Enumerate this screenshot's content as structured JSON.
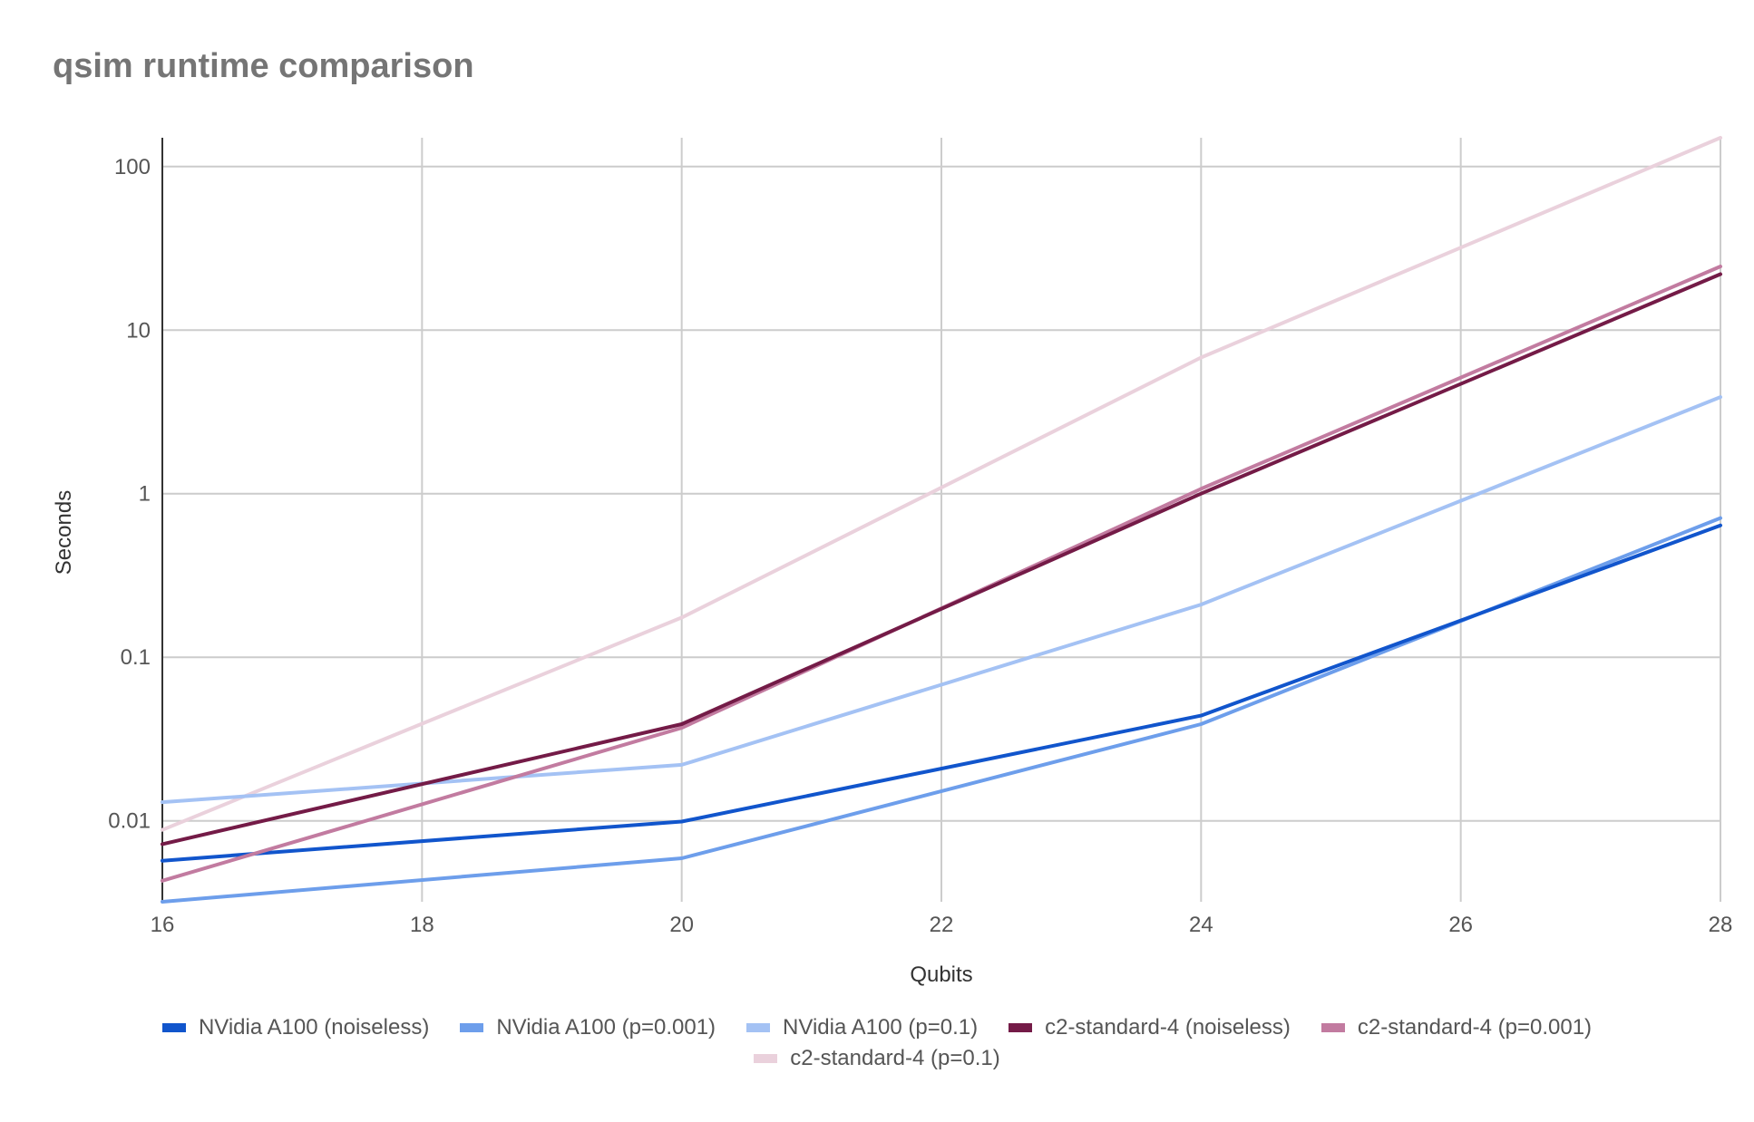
{
  "chart_data": {
    "type": "line",
    "title": "qsim runtime comparison",
    "xlabel": "Qubits",
    "ylabel": "Seconds",
    "x_ticks": [
      16,
      18,
      20,
      22,
      24,
      26,
      28
    ],
    "y_scale": "log",
    "y_ticks": [
      0.01,
      0.1,
      1,
      10,
      100
    ],
    "y_tick_labels": [
      "0.01",
      "0.1",
      "1",
      "10",
      "100"
    ],
    "xlim": [
      16,
      28
    ],
    "ylim": [
      0.0032,
      150
    ],
    "grid": true,
    "legend_position": "bottom",
    "x": [
      16,
      20,
      24,
      28
    ],
    "series": [
      {
        "name": "NVidia A100 (noiseless)",
        "color": "#1155cc",
        "values": [
          0.0057,
          0.0099,
          0.044,
          0.64
        ]
      },
      {
        "name": "NVidia A100 (p=0.001)",
        "color": "#6d9eeb",
        "values": [
          0.0032,
          0.0059,
          0.039,
          0.71
        ]
      },
      {
        "name": "NVidia A100 (p=0.1)",
        "color": "#a4c2f4",
        "values": [
          0.013,
          0.022,
          0.21,
          3.9
        ]
      },
      {
        "name": "c2-standard-4 (noiseless)",
        "color": "#741b47",
        "values": [
          0.0072,
          0.039,
          1.0,
          22
        ]
      },
      {
        "name": "c2-standard-4 (p=0.001)",
        "color": "#c27ba0",
        "values": [
          0.0043,
          0.037,
          1.07,
          24.5
        ]
      },
      {
        "name": "c2-standard-4 (p=0.1)",
        "color": "#ead1dc",
        "values": [
          0.0088,
          0.175,
          6.8,
          150
        ]
      }
    ]
  }
}
